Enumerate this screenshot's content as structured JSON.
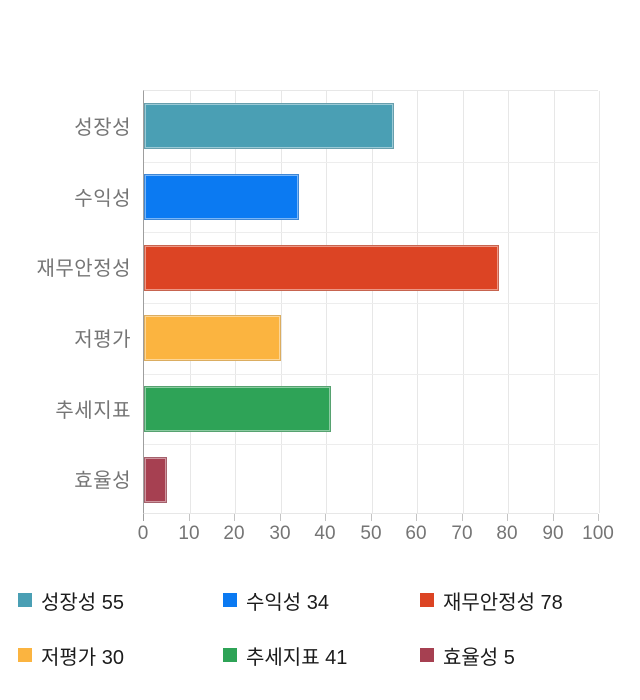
{
  "chart_data": {
    "type": "bar",
    "orientation": "horizontal",
    "title": "",
    "xlabel": "",
    "ylabel": "",
    "categories": [
      "성장성",
      "수익성",
      "재무안정성",
      "저평가",
      "추세지표",
      "효율성"
    ],
    "values": [
      55,
      34,
      78,
      30,
      41,
      5
    ],
    "colors": [
      "#4a9fb4",
      "#0b7af2",
      "#dc4424",
      "#fbb440",
      "#2ea357",
      "#a64051"
    ],
    "xlim": [
      0,
      100
    ],
    "x_ticks": [
      0,
      10,
      20,
      30,
      40,
      50,
      60,
      70,
      80,
      90,
      100
    ],
    "grid": true,
    "legend_position": "bottom",
    "legend": [
      {
        "label": "성장성 55",
        "color": "#4a9fb4"
      },
      {
        "label": "수익성 34",
        "color": "#0b7af2"
      },
      {
        "label": "재무안정성 78",
        "color": "#dc4424"
      },
      {
        "label": "저평가 30",
        "color": "#fbb440"
      },
      {
        "label": "추세지표 41",
        "color": "#2ea357"
      },
      {
        "label": "효율성 5",
        "color": "#a64051"
      }
    ]
  },
  "style": {
    "axis_line_color": "#9e9e9e",
    "gridline_color": "#e7e7e7",
    "tick_label_color": "#757575",
    "category_label_color": "#757575",
    "legend_text_color": "#1b1b1b",
    "background": "#ffffff"
  }
}
